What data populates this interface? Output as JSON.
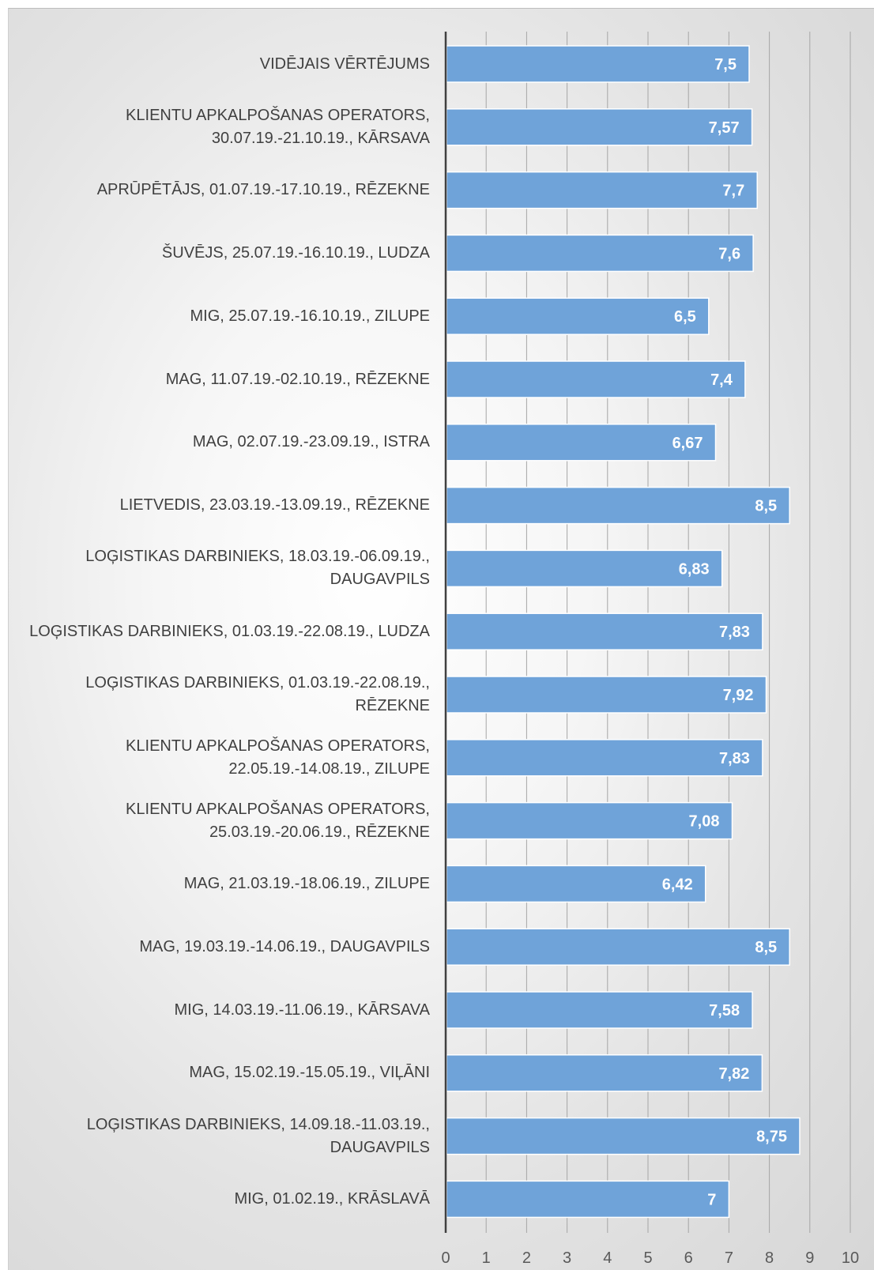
{
  "chart_data": {
    "type": "bar",
    "orientation": "horizontal",
    "categories": [
      "VIDĒJAIS VĒRTĒJUMS",
      "KLIENTU APKALPOŠANAS OPERATORS, 30.07.19.-21.10.19., KĀRSAVA",
      "APRŪPĒTĀJS, 01.07.19.-17.10.19., RĒZEKNE",
      "ŠUVĒJS, 25.07.19.-16.10.19., LUDZA",
      "MIG, 25.07.19.-16.10.19., ZILUPE",
      "MAG, 11.07.19.-02.10.19., RĒZEKNE",
      "MAG, 02.07.19.-23.09.19., ISTRA",
      "LIETVEDIS, 23.03.19.-13.09.19., RĒZEKNE",
      "LOĢISTIKAS DARBINIEKS, 18.03.19.-06.09.19., DAUGAVPILS",
      "LOĢISTIKAS DARBINIEKS, 01.03.19.-22.08.19., LUDZA",
      "LOĢISTIKAS DARBINIEKS, 01.03.19.-22.08.19., RĒZEKNE",
      "KLIENTU APKALPOŠANAS OPERATORS, 22.05.19.-14.08.19., ZILUPE",
      "KLIENTU APKALPOŠANAS OPERATORS, 25.03.19.-20.06.19., RĒZEKNE",
      "MAG, 21.03.19.-18.06.19., ZILUPE",
      "MAG, 19.03.19.-14.06.19., DAUGAVPILS",
      "MIG, 14.03.19.-11.06.19., KĀRSAVA",
      "MAG, 15.02.19.-15.05.19., VIĻĀNI",
      "LOĢISTIKAS DARBINIEKS, 14.09.18.-11.03.19., DAUGAVPILS",
      "MIG, 01.02.19., KRĀSLAVĀ"
    ],
    "values": [
      7.5,
      7.57,
      7.7,
      7.6,
      6.5,
      7.4,
      6.67,
      8.5,
      6.83,
      7.83,
      7.92,
      7.83,
      7.08,
      6.42,
      8.5,
      7.58,
      7.82,
      8.75,
      7
    ],
    "value_labels": [
      "7,5",
      "7,57",
      "7,7",
      "7,6",
      "6,5",
      "7,4",
      "6,67",
      "8,5",
      "6,83",
      "7,83",
      "7,92",
      "7,83",
      "7,08",
      "6,42",
      "8,5",
      "7,58",
      "7,82",
      "8,75",
      "7"
    ],
    "xlim": [
      0,
      10
    ],
    "x_ticks": [
      "0",
      "1",
      "2",
      "3",
      "4",
      "5",
      "6",
      "7",
      "8",
      "9",
      "10"
    ],
    "grid": true,
    "legend": "none",
    "colors": {
      "bar": "#6fa3d9",
      "bar_edge": "#ffffff",
      "data_label": "#ffffff",
      "category_label": "#404040",
      "gridline": "#a6a6a6",
      "axis": "#404040",
      "tick_label": "#595959"
    }
  }
}
